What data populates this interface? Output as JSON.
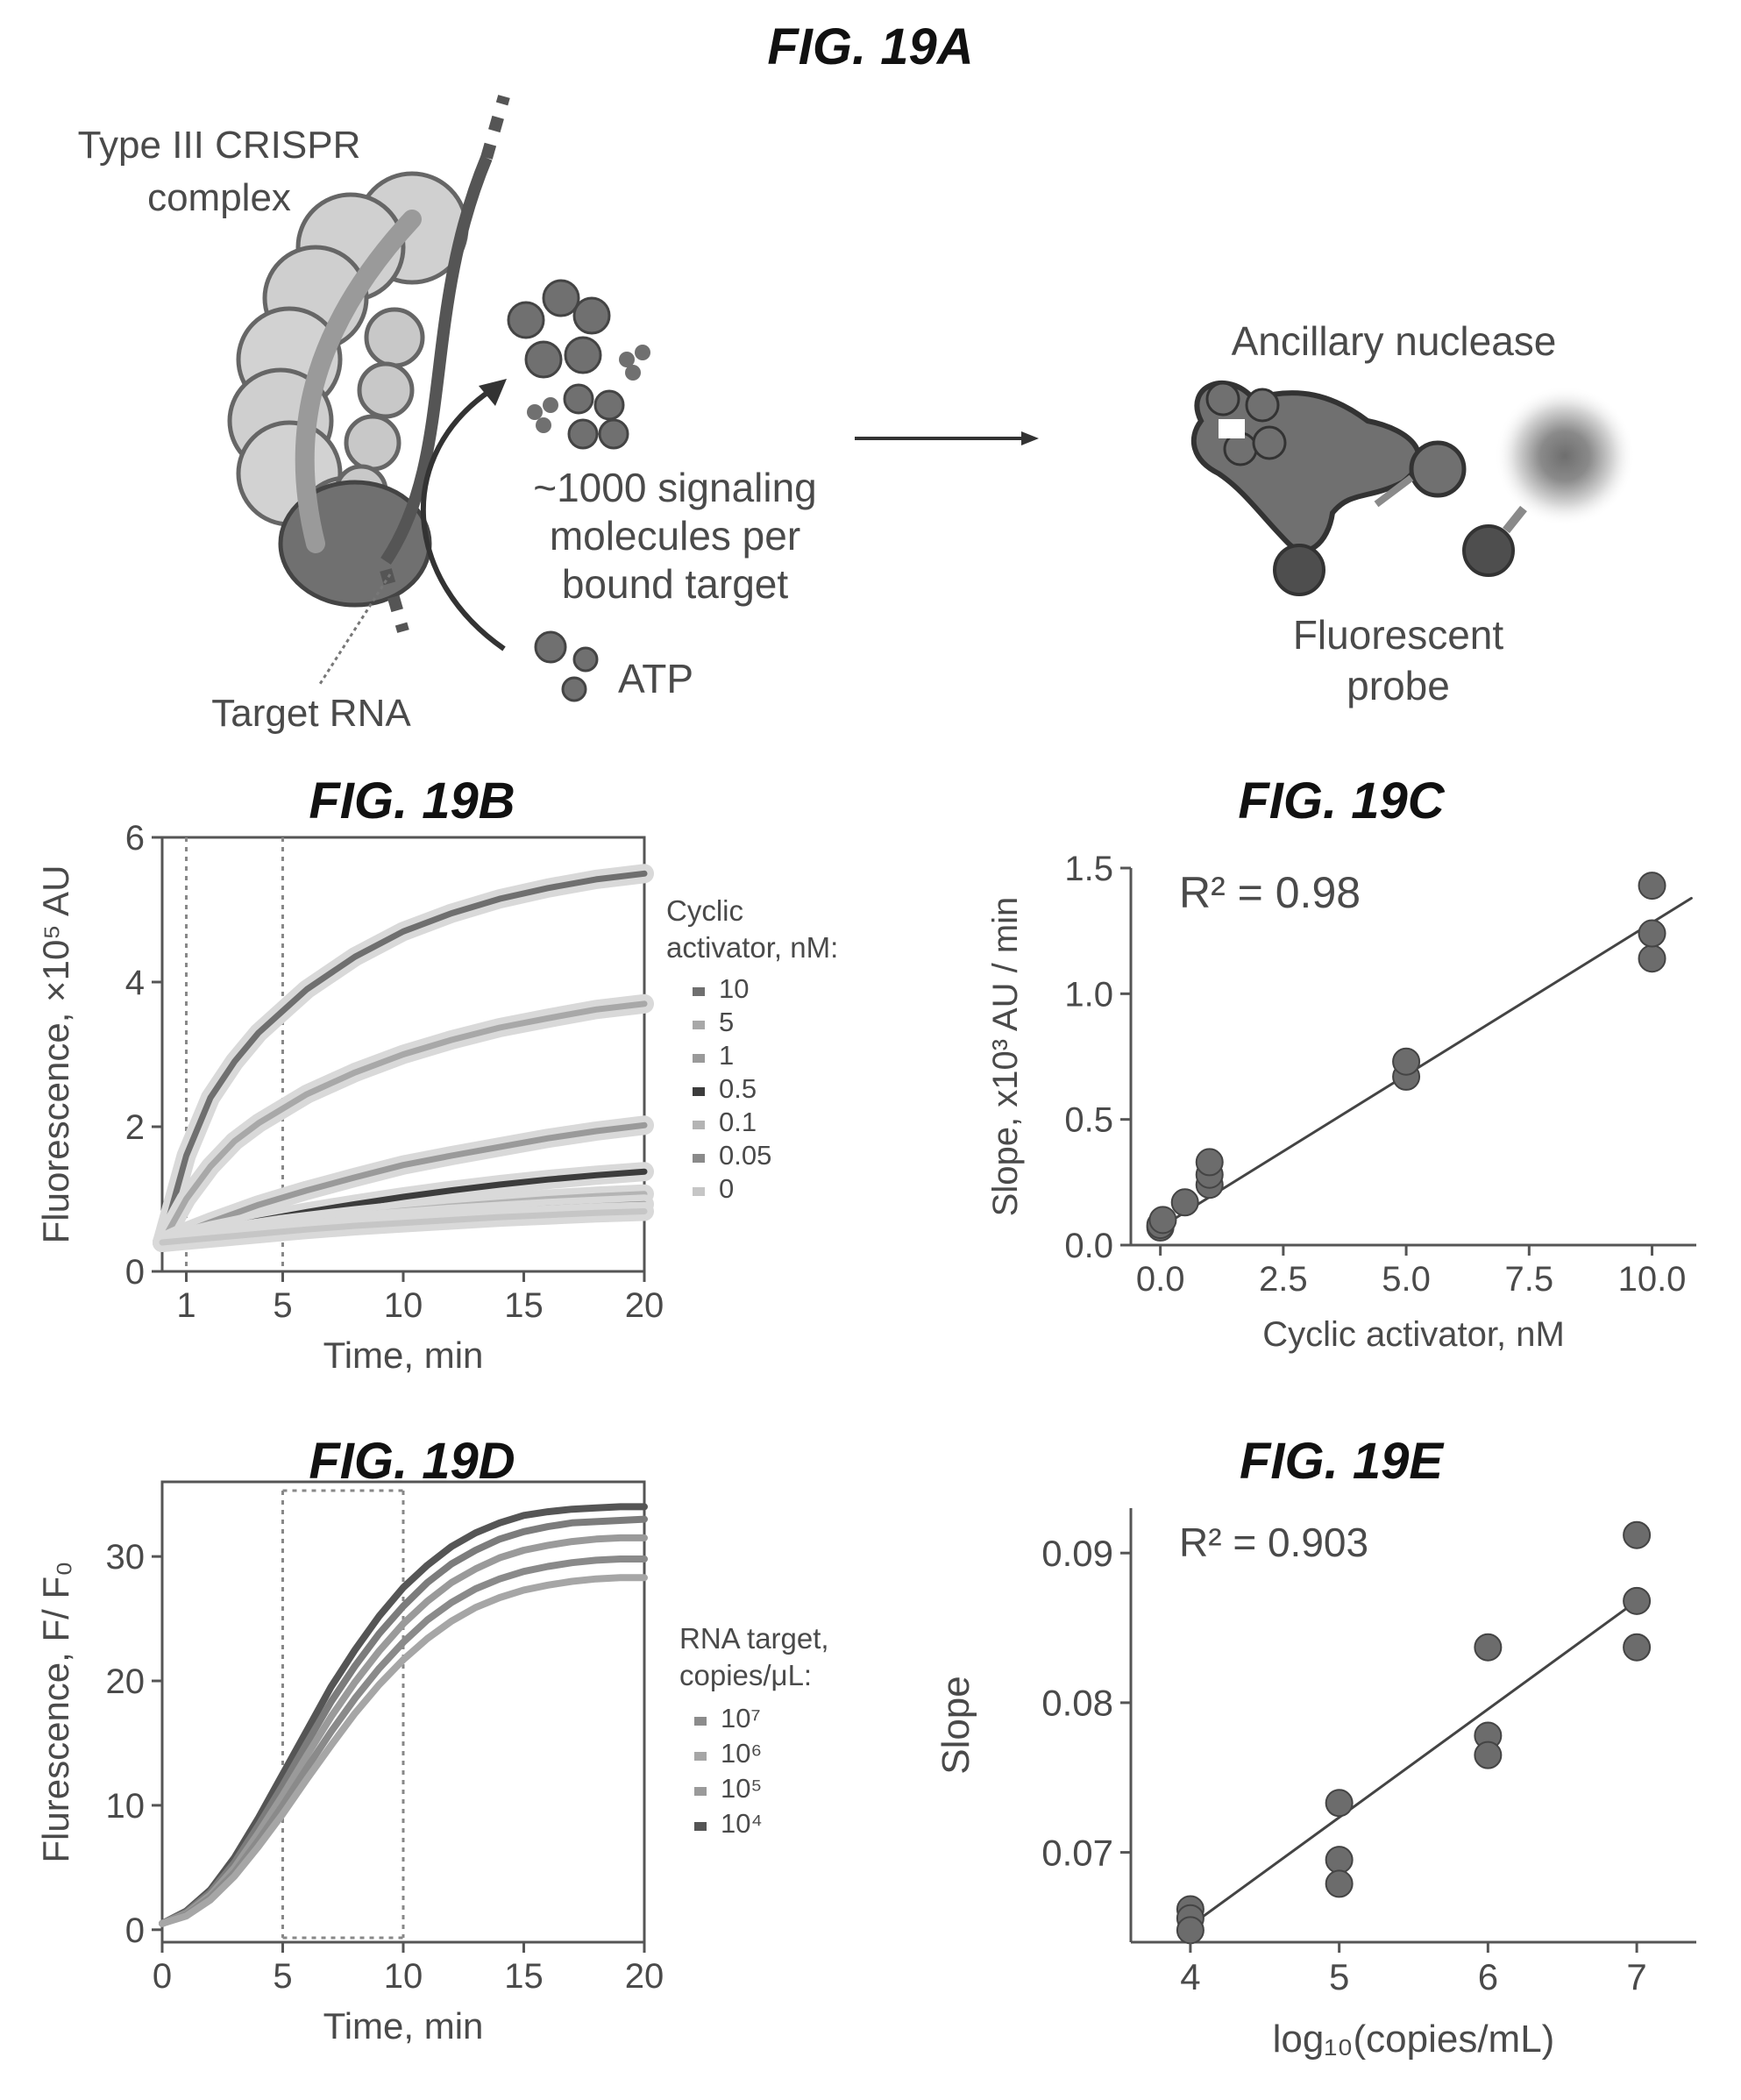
{
  "figures": {
    "a": {
      "title": "FIG. 19A",
      "complex_label": [
        "Type III CRISPR",
        "complex"
      ],
      "target_label": "Target RNA",
      "signal_label": [
        "~1000 signaling",
        "molecules per",
        "bound target"
      ],
      "atp_label": "ATP",
      "nuclease_label": "Ancillary nuclease",
      "probe_label": [
        "Fluorescent",
        "probe"
      ]
    },
    "b": {
      "title": "FIG. 19B"
    },
    "c": {
      "title": "FIG. 19C"
    },
    "d": {
      "title": "FIG. 19D"
    },
    "e": {
      "title": "FIG. 19E"
    }
  },
  "chart_data": [
    {
      "id": "b",
      "type": "line",
      "xlabel": "Time, min",
      "ylabel": "Fluorescence, ×10⁵ AU",
      "xlim": [
        0,
        20
      ],
      "ylim": [
        0,
        6
      ],
      "xticks": [
        1,
        5,
        10,
        15,
        20
      ],
      "yticks": [
        0,
        2,
        4,
        6
      ],
      "vlines": [
        1,
        5
      ],
      "legend_title": [
        "Cyclic",
        "activator, nM:"
      ],
      "legend_position": "right",
      "x": [
        0,
        1,
        2,
        3,
        4,
        5,
        6,
        8,
        10,
        12,
        14,
        16,
        18,
        20
      ],
      "series": [
        {
          "name": "10",
          "color": "#6f6f6f",
          "values": [
            0.4,
            1.6,
            2.4,
            2.9,
            3.3,
            3.6,
            3.9,
            4.35,
            4.7,
            4.95,
            5.15,
            5.3,
            5.42,
            5.5
          ]
        },
        {
          "name": "5",
          "color": "#a8a8a8",
          "values": [
            0.4,
            1.0,
            1.45,
            1.8,
            2.05,
            2.25,
            2.45,
            2.75,
            3.0,
            3.2,
            3.37,
            3.5,
            3.62,
            3.7
          ]
        },
        {
          "name": "1",
          "color": "#9a9a9a",
          "values": [
            0.4,
            0.55,
            0.68,
            0.8,
            0.92,
            1.02,
            1.12,
            1.3,
            1.47,
            1.6,
            1.72,
            1.84,
            1.94,
            2.02
          ]
        },
        {
          "name": "0.5",
          "color": "#3c3c3c",
          "values": [
            0.4,
            0.48,
            0.56,
            0.63,
            0.7,
            0.76,
            0.82,
            0.93,
            1.03,
            1.12,
            1.2,
            1.27,
            1.33,
            1.38
          ]
        },
        {
          "name": "0.1",
          "color": "#b4b4b4",
          "values": [
            0.4,
            0.45,
            0.5,
            0.55,
            0.6,
            0.65,
            0.69,
            0.77,
            0.84,
            0.9,
            0.95,
            1.0,
            1.04,
            1.07
          ]
        },
        {
          "name": "0.05",
          "color": "#8a8a8a",
          "values": [
            0.4,
            0.44,
            0.48,
            0.52,
            0.56,
            0.6,
            0.63,
            0.69,
            0.74,
            0.79,
            0.83,
            0.87,
            0.9,
            0.93
          ]
        },
        {
          "name": "0",
          "color": "#c6c6c6",
          "values": [
            0.4,
            0.43,
            0.46,
            0.49,
            0.52,
            0.55,
            0.58,
            0.63,
            0.67,
            0.71,
            0.75,
            0.78,
            0.81,
            0.83
          ]
        }
      ]
    },
    {
      "id": "c",
      "type": "scatter",
      "xlabel": "Cyclic activator, nM",
      "ylabel": "Slope, x10³ AU / min",
      "xlim": [
        -0.6,
        10.9
      ],
      "ylim": [
        0,
        1.5
      ],
      "xticks": [
        "0.0",
        "2.5",
        "5.0",
        "7.5",
        "10.0"
      ],
      "yticks": [
        "0.0",
        "0.5",
        "1.0",
        "1.5"
      ],
      "annotation": "R² = 0.98",
      "fit": {
        "x": [
          0,
          10.8
        ],
        "y": [
          0.07,
          1.38
        ]
      },
      "points": {
        "x": [
          0,
          0,
          0.05,
          0.5,
          1,
          1,
          1,
          5,
          5,
          10,
          10,
          10
        ],
        "y": [
          0.07,
          0.08,
          0.1,
          0.17,
          0.24,
          0.28,
          0.33,
          0.67,
          0.73,
          1.14,
          1.24,
          1.43
        ]
      }
    },
    {
      "id": "d",
      "type": "line",
      "xlabel": "Time, min",
      "ylabel": "Flurescence, F/ F₀",
      "xlim": [
        0,
        20
      ],
      "ylim": [
        -1,
        36
      ],
      "xticks": [
        0,
        5,
        10,
        15,
        20
      ],
      "yticks": [
        0,
        10,
        20,
        30
      ],
      "vlines": [
        5,
        10
      ],
      "legend_title": [
        "RNA target,",
        "copies/μL:"
      ],
      "legend_position": "right",
      "legend": [
        "10⁷",
        "10⁶",
        "10⁵",
        "10⁴"
      ],
      "legend_colors": [
        "#8c8c8c",
        "#a6a6a6",
        "#9a9a9a",
        "#555555"
      ],
      "x": [
        0,
        1,
        2,
        3,
        4,
        5,
        6,
        7,
        8,
        9,
        10,
        11,
        12,
        13,
        14,
        15,
        16,
        17,
        18,
        19,
        20
      ],
      "series": [
        {
          "color": "#555555",
          "values": [
            0.5,
            1.5,
            3.2,
            5.8,
            9.0,
            12.5,
            16.0,
            19.5,
            22.5,
            25.2,
            27.5,
            29.3,
            30.8,
            31.9,
            32.7,
            33.3,
            33.6,
            33.8,
            33.9,
            34.0,
            34.0
          ]
        },
        {
          "color": "#7c7c7c",
          "values": [
            0.5,
            1.4,
            3.0,
            5.4,
            8.4,
            11.6,
            15.0,
            18.3,
            21.2,
            23.8,
            26.0,
            27.9,
            29.4,
            30.5,
            31.4,
            32.0,
            32.4,
            32.7,
            32.8,
            32.9,
            33.0
          ]
        },
        {
          "color": "#9a9a9a",
          "values": [
            0.5,
            1.3,
            2.8,
            5.0,
            7.8,
            10.8,
            14.0,
            17.1,
            19.9,
            22.4,
            24.6,
            26.4,
            27.9,
            29.0,
            29.9,
            30.5,
            30.9,
            31.2,
            31.4,
            31.5,
            31.5
          ]
        },
        {
          "color": "#8a8a8a",
          "values": [
            0.5,
            1.2,
            2.6,
            4.6,
            7.2,
            10.0,
            13.0,
            15.9,
            18.6,
            21.0,
            23.1,
            24.9,
            26.3,
            27.4,
            28.2,
            28.8,
            29.2,
            29.5,
            29.7,
            29.8,
            29.8
          ]
        },
        {
          "color": "#a6a6a6",
          "values": [
            0.5,
            1.1,
            2.4,
            4.3,
            6.7,
            9.3,
            12.1,
            14.8,
            17.4,
            19.7,
            21.7,
            23.4,
            24.8,
            25.9,
            26.7,
            27.3,
            27.7,
            28.0,
            28.2,
            28.3,
            28.3
          ]
        }
      ]
    },
    {
      "id": "e",
      "type": "scatter",
      "xlabel": "log₁₀(copies/mL)",
      "ylabel": "Slope",
      "xlim": [
        3.6,
        7.4
      ],
      "ylim": [
        0.064,
        0.093
      ],
      "xticks": [
        "4",
        "5",
        "6",
        "7"
      ],
      "yticks": [
        "0.07",
        "0.08",
        "0.09"
      ],
      "annotation": "R² = 0.903",
      "fit": {
        "x": [
          4,
          7
        ],
        "y": [
          0.0651,
          0.0868
        ]
      },
      "points": {
        "x": [
          4,
          4,
          4,
          5,
          5,
          5,
          6,
          6,
          6,
          7,
          7,
          7
        ],
        "y": [
          0.0662,
          0.0656,
          0.0648,
          0.0733,
          0.0695,
          0.0679,
          0.0837,
          0.0778,
          0.0765,
          0.0912,
          0.0868,
          0.0837
        ]
      }
    }
  ]
}
